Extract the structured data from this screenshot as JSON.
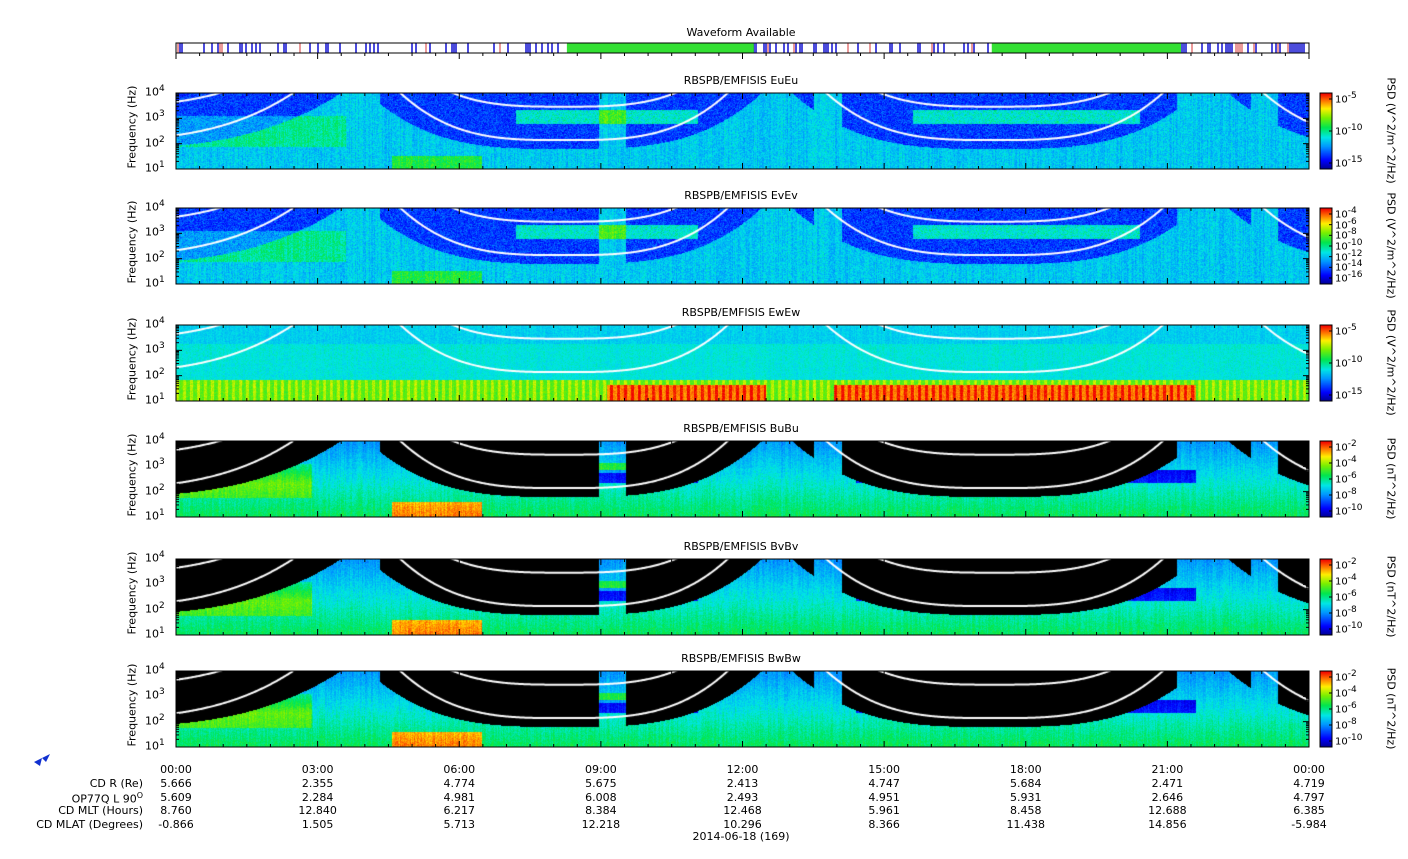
{
  "waveform": {
    "title": "Waveform Available"
  },
  "chart_data": [
    {
      "type": "heatmap",
      "title": "RBSPB/EMFISIS  EuEu",
      "ylabel": "Frequency (Hz)",
      "yscale": "log",
      "ylim": [
        10,
        10000
      ],
      "yticks": [
        "10",
        "10",
        "10",
        "10"
      ],
      "yexp": [
        "1",
        "2",
        "3",
        "4"
      ],
      "colorbar_label": "PSD (V^2/m^2/Hz)",
      "colorbar_scale": "log",
      "colorbar_ticks": [
        {
          "base": "10",
          "exp": "-5"
        },
        {
          "base": "10",
          "exp": "-10"
        },
        {
          "base": "10",
          "exp": "-15"
        }
      ],
      "kind": "E"
    },
    {
      "type": "heatmap",
      "title": "RBSPB/EMFISIS  EvEv",
      "ylabel": "Frequency (Hz)",
      "yscale": "log",
      "ylim": [
        10,
        10000
      ],
      "yticks": [
        "10",
        "10",
        "10",
        "10"
      ],
      "yexp": [
        "1",
        "2",
        "3",
        "4"
      ],
      "colorbar_label": "PSD (V^2/m^2/Hz)",
      "colorbar_scale": "log",
      "colorbar_ticks": [
        {
          "base": "10",
          "exp": "-4"
        },
        {
          "base": "10",
          "exp": "-6"
        },
        {
          "base": "10",
          "exp": "-8"
        },
        {
          "base": "10",
          "exp": "-10"
        },
        {
          "base": "10",
          "exp": "-12"
        },
        {
          "base": "10",
          "exp": "-14"
        },
        {
          "base": "10",
          "exp": "-16"
        }
      ],
      "kind": "E"
    },
    {
      "type": "heatmap",
      "title": "RBSPB/EMFISIS  EwEw",
      "ylabel": "Frequency (Hz)",
      "yscale": "log",
      "ylim": [
        10,
        10000
      ],
      "yticks": [
        "10",
        "10",
        "10",
        "10"
      ],
      "yexp": [
        "1",
        "2",
        "3",
        "4"
      ],
      "colorbar_label": "PSD (V^2/m^2/Hz)",
      "colorbar_scale": "log",
      "colorbar_ticks": [
        {
          "base": "10",
          "exp": "-5"
        },
        {
          "base": "10",
          "exp": "-10"
        },
        {
          "base": "10",
          "exp": "-15"
        }
      ],
      "kind": "Ew"
    },
    {
      "type": "heatmap",
      "title": "RBSPB/EMFISIS  BuBu",
      "ylabel": "Frequency (Hz)",
      "yscale": "log",
      "ylim": [
        10,
        10000
      ],
      "yticks": [
        "10",
        "10",
        "10",
        "10"
      ],
      "yexp": [
        "1",
        "2",
        "3",
        "4"
      ],
      "colorbar_label": "PSD (nT^2/Hz)",
      "colorbar_scale": "log",
      "colorbar_ticks": [
        {
          "base": "10",
          "exp": "-2"
        },
        {
          "base": "10",
          "exp": "-4"
        },
        {
          "base": "10",
          "exp": "-6"
        },
        {
          "base": "10",
          "exp": "-8"
        },
        {
          "base": "10",
          "exp": "-10"
        }
      ],
      "kind": "B"
    },
    {
      "type": "heatmap",
      "title": "RBSPB/EMFISIS  BvBv",
      "ylabel": "Frequency (Hz)",
      "yscale": "log",
      "ylim": [
        10,
        10000
      ],
      "yticks": [
        "10",
        "10",
        "10",
        "10"
      ],
      "yexp": [
        "1",
        "2",
        "3",
        "4"
      ],
      "colorbar_label": "PSD (nT^2/Hz)",
      "colorbar_scale": "log",
      "colorbar_ticks": [
        {
          "base": "10",
          "exp": "-2"
        },
        {
          "base": "10",
          "exp": "-4"
        },
        {
          "base": "10",
          "exp": "-6"
        },
        {
          "base": "10",
          "exp": "-8"
        },
        {
          "base": "10",
          "exp": "-10"
        }
      ],
      "kind": "B"
    },
    {
      "type": "heatmap",
      "title": "RBSPB/EMFISIS  BwBw",
      "ylabel": "Frequency (Hz)",
      "yscale": "log",
      "ylim": [
        10,
        10000
      ],
      "yticks": [
        "10",
        "10",
        "10",
        "10"
      ],
      "yexp": [
        "1",
        "2",
        "3",
        "4"
      ],
      "colorbar_label": "PSD (nT^2/Hz)",
      "colorbar_scale": "log",
      "colorbar_ticks": [
        {
          "base": "10",
          "exp": "-2"
        },
        {
          "base": "10",
          "exp": "-4"
        },
        {
          "base": "10",
          "exp": "-6"
        },
        {
          "base": "10",
          "exp": "-8"
        },
        {
          "base": "10",
          "exp": "-10"
        }
      ],
      "kind": "B"
    }
  ],
  "time_axis": {
    "ticks": [
      "00:00",
      "03:00",
      "06:00",
      "09:00",
      "12:00",
      "15:00",
      "18:00",
      "21:00",
      "00:00"
    ],
    "date_label": "2014-06-18 (169)"
  },
  "ephemeris": {
    "rows": [
      {
        "label": "CD R (Re)",
        "values": [
          "5.666",
          "2.355",
          "4.774",
          "5.675",
          "2.413",
          "4.747",
          "5.684",
          "2.471",
          "4.719"
        ]
      },
      {
        "label": "OP77Q L 90",
        "label_sup": "O",
        "values": [
          "5.609",
          "2.284",
          "4.981",
          "6.008",
          "2.493",
          "4.951",
          "5.931",
          "2.646",
          "4.797"
        ]
      },
      {
        "label": "CD MLT (Hours)",
        "values": [
          "8.760",
          "12.840",
          "6.217",
          "8.384",
          "12.468",
          "5.961",
          "8.458",
          "12.688",
          "6.385"
        ]
      },
      {
        "label": "CD MLAT (Degrees)",
        "values": [
          "-0.866",
          "1.505",
          "5.713",
          "12.218",
          "10.296",
          "8.366",
          "11.438",
          "14.856",
          "-5.984"
        ]
      }
    ]
  },
  "colors": {
    "waveform_green": "#33e033",
    "waveform_blue": "#0000cc",
    "waveform_red": "#cc0000",
    "curve": "#ffffff"
  }
}
